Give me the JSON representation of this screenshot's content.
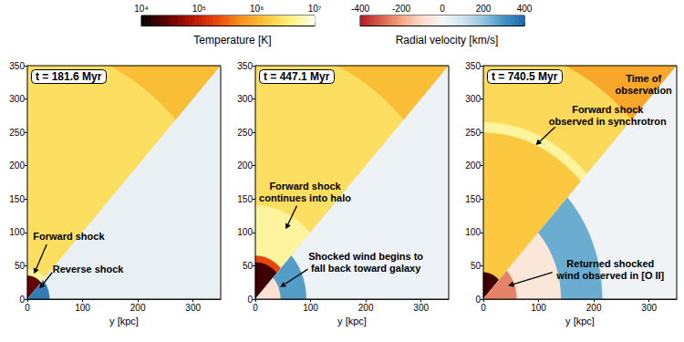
{
  "chart_data": {
    "type": "heatmap",
    "colorbars": [
      {
        "label": "Temperature [K]",
        "range": [
          10000,
          10000000
        ],
        "log": true,
        "ticks": [
          {
            "value": 10000,
            "label": "10⁴"
          },
          {
            "value": 100000,
            "label": "10⁵"
          },
          {
            "value": 1000000,
            "label": "10⁶"
          },
          {
            "value": 10000000,
            "label": "10⁷"
          }
        ]
      },
      {
        "label": "Radial velocity [km/s]",
        "range": [
          -400,
          400
        ],
        "ticks": [
          -400,
          -200,
          0,
          200,
          400
        ]
      }
    ],
    "panels": [
      {
        "title": "t = 181.6 Myr",
        "xlabel": "y [kpc]",
        "xlim": [
          0,
          350
        ],
        "ylim": [
          0,
          350
        ],
        "xticks": [
          0,
          100,
          200,
          300
        ],
        "yticks": [
          0,
          50,
          100,
          150,
          200,
          250,
          300,
          350
        ],
        "temperature": [
          {
            "r": [
              0,
              500
            ],
            "value": 2500000
          },
          {
            "r": [
              380,
              500
            ],
            "value": 1200000
          },
          {
            "r": [
              35,
              45
            ],
            "value": 5000000
          },
          {
            "r": [
              0,
              35
            ],
            "value": 30000
          }
        ],
        "radial_velocity": [
          {
            "r": [
              0,
              500
            ],
            "value": 40
          },
          {
            "r": [
              0,
              40
            ],
            "value": 350
          }
        ],
        "annotations": [
          "Forward shock",
          "Reverse shock"
        ]
      },
      {
        "title": "t = 447.1 Myr",
        "xlabel": "y [kpc]",
        "xlim": [
          0,
          350
        ],
        "ylim": [
          0,
          350
        ],
        "xticks": [
          0,
          100,
          200,
          300
        ],
        "yticks": [
          0,
          50,
          100,
          150,
          200,
          250,
          300,
          350
        ],
        "temperature": [
          {
            "r": [
              0,
              500
            ],
            "value": 2500000
          },
          {
            "r": [
              380,
              500
            ],
            "value": 1200000
          },
          {
            "r": [
              0,
              140
            ],
            "value": 5000000
          },
          {
            "r": [
              0,
              65
            ],
            "value": 200000
          },
          {
            "r": [
              0,
              55
            ],
            "value": 20000
          }
        ],
        "radial_velocity": [
          {
            "r": [
              0,
              500
            ],
            "value": 30
          },
          {
            "r": [
              0,
              92
            ],
            "value": 280
          },
          {
            "r": [
              0,
              45
            ],
            "value": -80
          }
        ],
        "annotations": [
          "Forward shock\ncontinues into halo",
          "Shocked wind begins to\nfall back toward galaxy"
        ]
      },
      {
        "title": "t = 740.5 Myr",
        "xlabel": "y [kpc]",
        "xlim": [
          0,
          350
        ],
        "ylim": [
          0,
          350
        ],
        "xticks": [
          0,
          100,
          200,
          300
        ],
        "yticks": [
          0,
          50,
          100,
          150,
          200,
          250,
          300,
          350
        ],
        "temperature": [
          {
            "r": [
              0,
              500
            ],
            "value": 2200000
          },
          {
            "r": [
              0,
              250
            ],
            "value": 1500000
          },
          {
            "r": [
              250,
              265
            ],
            "value": 5000000
          },
          {
            "r": [
              380,
              500
            ],
            "value": 800000
          },
          {
            "r": [
              0,
              40
            ],
            "value": 20000
          }
        ],
        "radial_velocity": [
          {
            "r": [
              0,
              500
            ],
            "value": 20
          },
          {
            "r": [
              140,
              215
            ],
            "value": 250
          },
          {
            "r": [
              0,
              140
            ],
            "value": -60
          },
          {
            "r": [
              0,
              60
            ],
            "value": -250
          }
        ],
        "annotations": [
          "Forward shock\nobserved in synchrotron",
          "Time of\nobservation",
          "Returned shocked\nwind observed in [O II]"
        ]
      }
    ]
  }
}
